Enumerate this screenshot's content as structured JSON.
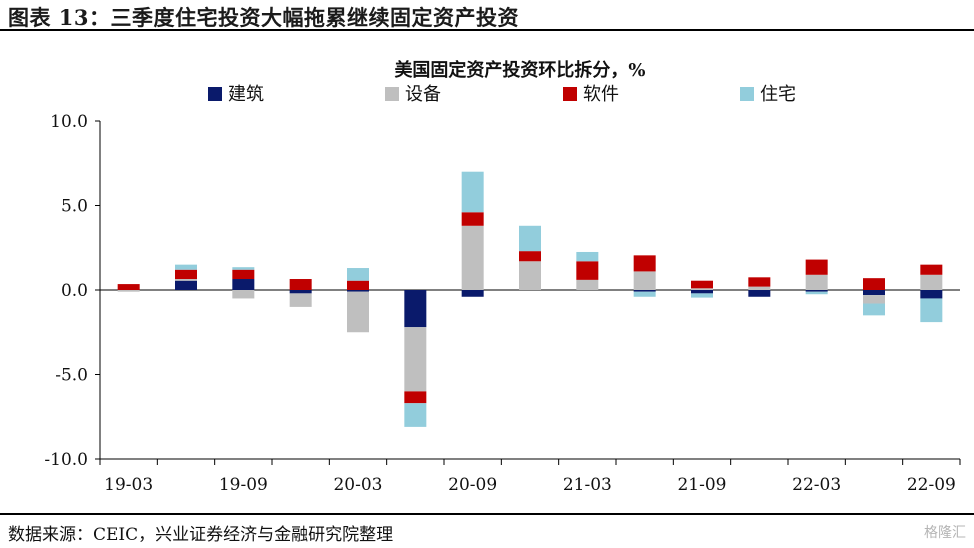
{
  "figure": {
    "title": "图表 13：三季度住宅投资大幅拖累继续固定资产投资",
    "source": "数据来源：CEIC，兴业证券经济与金融研究院整理",
    "watermark": "格隆汇"
  },
  "chart_data": {
    "type": "bar",
    "stacked": true,
    "title": "美国固定资产投资环比拆分，%",
    "xlabel": "",
    "ylabel": "",
    "ylim": [
      -10,
      10
    ],
    "yticks": [
      "10.0",
      "5.0",
      "0.0",
      "-5.0",
      "-10.0"
    ],
    "ytick_values": [
      10,
      5,
      0,
      -5,
      -10
    ],
    "categories": [
      "19-03",
      "19-06",
      "19-09",
      "19-12",
      "20-03",
      "20-06",
      "20-09",
      "20-12",
      "21-03",
      "21-06",
      "21-09",
      "21-12",
      "22-03",
      "22-06",
      "22-09"
    ],
    "xtick_labels": [
      "19-03",
      "",
      "19-09",
      "",
      "20-03",
      "",
      "20-09",
      "",
      "21-03",
      "",
      "21-09",
      "",
      "22-03",
      "",
      "22-09"
    ],
    "legend_position": "top",
    "grid": false,
    "series": [
      {
        "name": "建筑",
        "color": "#0a1a6b",
        "values": [
          0.0,
          0.55,
          0.65,
          -0.2,
          -0.1,
          -2.2,
          -0.4,
          0.0,
          0.0,
          -0.1,
          -0.2,
          -0.4,
          -0.1,
          -0.3,
          -0.5
        ]
      },
      {
        "name": "设备",
        "color": "#bfbfbf",
        "values": [
          -0.1,
          0.1,
          -0.5,
          -0.8,
          -2.4,
          -3.8,
          3.8,
          1.7,
          0.6,
          1.1,
          0.1,
          0.2,
          0.9,
          -0.5,
          0.9
        ]
      },
      {
        "name": "软件",
        "color": "#c00000",
        "values": [
          0.35,
          0.55,
          0.55,
          0.65,
          0.55,
          -0.7,
          0.8,
          0.6,
          1.1,
          0.95,
          0.45,
          0.55,
          0.9,
          0.7,
          0.6
        ]
      },
      {
        "name": "住宅",
        "color": "#92cddc",
        "values": [
          0.0,
          0.3,
          0.15,
          0.0,
          0.75,
          -1.4,
          2.4,
          1.5,
          0.55,
          -0.3,
          -0.25,
          0.0,
          -0.15,
          -0.7,
          -1.4
        ]
      }
    ]
  }
}
